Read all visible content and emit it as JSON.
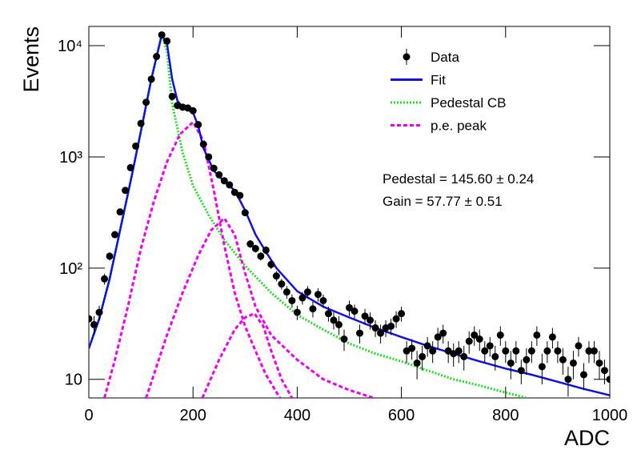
{
  "chart_data": {
    "type": "scatter",
    "x_label": "ADC",
    "y_label": "Events",
    "log_y": true,
    "legend_position": "upper right",
    "xlim": [
      0,
      1000
    ],
    "xticks": [
      0,
      200,
      400,
      600,
      800,
      1000
    ],
    "ylim": [
      6.8,
      14900
    ],
    "yticks": [
      10,
      {
        "value": 100,
        "label": "10²"
      },
      {
        "value": 1000,
        "label": "10³"
      },
      {
        "value": 10000,
        "label": "10⁴"
      }
    ],
    "annotations": [
      "Pedestal = 145.60 ± 0.24",
      "Gain = 57.77 ± 0.51"
    ],
    "series": [
      {
        "name": "Data",
        "type": "scatter",
        "color": "#000000",
        "x": [
          0,
          10,
          20,
          30,
          40,
          50,
          60,
          70,
          80,
          90,
          100,
          110,
          120,
          130,
          140,
          150,
          160,
          170,
          180,
          190,
          200,
          210,
          220,
          230,
          240,
          250,
          260,
          270,
          280,
          290,
          300,
          310,
          320,
          330,
          340,
          350,
          360,
          370,
          380,
          390,
          400,
          410,
          420,
          430,
          440,
          450,
          460,
          470,
          480,
          490,
          500,
          510,
          520,
          530,
          540,
          550,
          560,
          570,
          580,
          590,
          600,
          610,
          620,
          630,
          640,
          650,
          660,
          670,
          680,
          690,
          700,
          710,
          720,
          730,
          740,
          750,
          760,
          770,
          780,
          790,
          800,
          810,
          820,
          830,
          840,
          850,
          860,
          870,
          880,
          890,
          900,
          910,
          920,
          930,
          940,
          950,
          960,
          970,
          980,
          990,
          1000
        ],
        "values": [
          35,
          31,
          40,
          80,
          128,
          200,
          320,
          500,
          800,
          1250,
          2000,
          3100,
          5000,
          8000,
          12500,
          11000,
          3500,
          2900,
          2800,
          2750,
          2600,
          1950,
          1300,
          1000,
          790,
          690,
          610,
          560,
          480,
          450,
          315,
          165,
          150,
          128,
          145,
          108,
          85,
          72,
          61,
          51,
          40,
          54,
          61,
          43,
          58,
          51,
          39,
          34,
          31,
          23,
          44,
          41,
          26,
          37,
          34,
          29,
          26,
          29,
          30,
          35,
          39,
          18,
          19,
          14,
          16,
          20,
          18,
          24,
          26,
          18,
          17,
          18,
          16,
          22,
          25,
          23,
          18,
          20,
          16,
          25,
          18,
          14,
          18,
          12,
          15,
          18,
          25,
          13,
          18,
          24,
          18,
          15,
          10,
          14,
          20,
          11,
          18,
          18,
          14,
          12,
          10
        ],
        "errors": [
          6,
          6,
          6,
          9,
          11,
          14,
          18,
          22,
          28,
          35,
          45,
          56,
          71,
          89,
          112,
          105,
          59,
          54,
          53,
          52,
          51,
          44,
          36,
          32,
          28,
          26,
          25,
          24,
          22,
          21,
          18,
          13,
          12,
          11,
          12,
          10,
          9,
          8,
          8,
          7,
          6,
          7,
          8,
          7,
          8,
          7,
          6,
          6,
          6,
          5,
          7,
          6,
          5,
          6,
          6,
          5,
          5,
          5,
          5,
          6,
          6,
          4,
          4,
          4,
          4,
          4,
          4,
          5,
          5,
          4,
          4,
          4,
          4,
          5,
          5,
          5,
          4,
          4,
          4,
          5,
          4,
          4,
          4,
          3,
          4,
          4,
          5,
          4,
          4,
          5,
          4,
          4,
          3,
          4,
          4,
          3,
          4,
          4,
          4,
          3,
          3
        ]
      },
      {
        "name": "Fit",
        "type": "line",
        "color": "#1010e0",
        "style": "solid",
        "x": [
          0,
          20,
          40,
          60,
          80,
          100,
          120,
          140,
          150,
          160,
          170,
          180,
          200,
          210,
          220,
          240,
          260,
          280,
          300,
          320,
          340,
          360,
          400,
          450,
          500,
          550,
          600,
          650,
          700,
          750,
          800,
          850,
          900,
          950,
          1000
        ],
        "values": [
          19,
          35,
          80,
          220,
          600,
          1700,
          5000,
          12500,
          10500,
          5000,
          3200,
          2800,
          2500,
          1900,
          1200,
          750,
          600,
          500,
          330,
          200,
          140,
          100,
          62,
          45,
          36,
          29,
          24,
          20,
          17,
          14.5,
          12.5,
          11,
          9.5,
          8.2,
          7.2
        ]
      },
      {
        "name": "Pedestal CB",
        "type": "line",
        "color": "#22dd22",
        "style": "dotted",
        "x": [
          0,
          20,
          40,
          60,
          80,
          100,
          120,
          140,
          150,
          160,
          180,
          200,
          230,
          260,
          300,
          350,
          400,
          450,
          500,
          550,
          600,
          650,
          700,
          750,
          800,
          840
        ],
        "values": [
          19,
          35,
          80,
          220,
          600,
          1700,
          5000,
          12500,
          9000,
          3000,
          1100,
          550,
          300,
          180,
          105,
          60,
          38,
          28,
          21,
          17,
          14.5,
          12,
          10,
          8.8,
          7.6,
          6.8
        ]
      },
      {
        "name": "p.e. peak",
        "type": "line",
        "color": "#ee00ee",
        "style": "dashed",
        "x": [
          30,
          50,
          75,
          100,
          125,
          150,
          175,
          200,
          220,
          240,
          260,
          280,
          300,
          320,
          340,
          367
        ],
        "values": [
          6.8,
          15,
          45,
          150,
          400,
          900,
          1600,
          2050,
          1400,
          500,
          160,
          60,
          30,
          18,
          11,
          6.8
        ]
      },
      {
        "type": "line",
        "color": "#ee00ee",
        "style": "dashed",
        "x": [
          110,
          150,
          180,
          210,
          235,
          260,
          280,
          300,
          320,
          350,
          400,
          450,
          500,
          547
        ],
        "values": [
          6.8,
          25,
          60,
          130,
          220,
          280,
          200,
          90,
          45,
          25,
          15,
          10,
          8,
          6.8
        ]
      },
      {
        "type": "line",
        "color": "#ee00ee",
        "style": "dashed",
        "x": [
          218,
          250,
          280,
          300,
          318,
          335,
          350,
          370,
          390
        ],
        "values": [
          6.8,
          15,
          28,
          36,
          39,
          30,
          18,
          10,
          6.8
        ]
      }
    ]
  }
}
